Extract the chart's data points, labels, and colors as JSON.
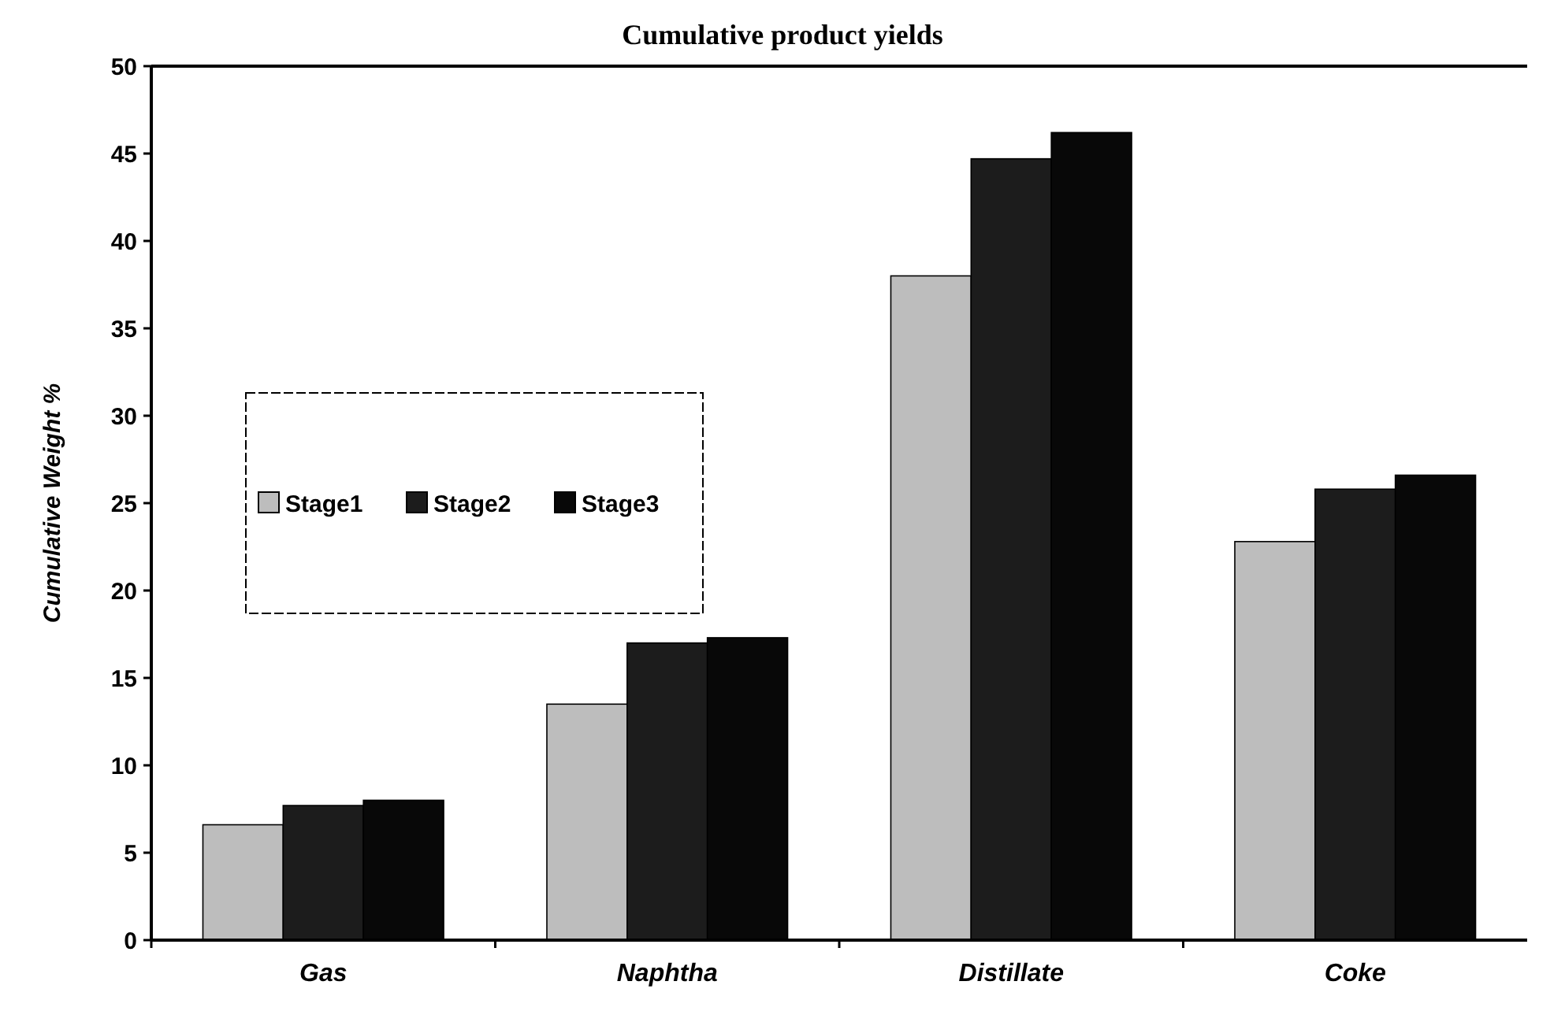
{
  "chart_data": {
    "type": "bar",
    "title": "Cumulative product yields",
    "ylabel": "Cumulative Weight %",
    "categories": [
      "Gas",
      "Naphtha",
      "Distillate",
      "Coke"
    ],
    "series": [
      {
        "name": "Stage1",
        "color": "#bdbdbd",
        "values": [
          6.6,
          13.5,
          38,
          22.8
        ]
      },
      {
        "name": "Stage2",
        "color": "#1c1c1c",
        "values": [
          7.7,
          17,
          44.7,
          25.8
        ]
      },
      {
        "name": "Stage3",
        "color": "#080808",
        "values": [
          8,
          17.3,
          46.2,
          26.6
        ]
      }
    ],
    "ylim": [
      0,
      50
    ],
    "yticks": [
      0,
      5,
      10,
      15,
      20,
      25,
      30,
      35,
      40,
      45,
      50
    ],
    "legend": "left",
    "grid": false
  }
}
